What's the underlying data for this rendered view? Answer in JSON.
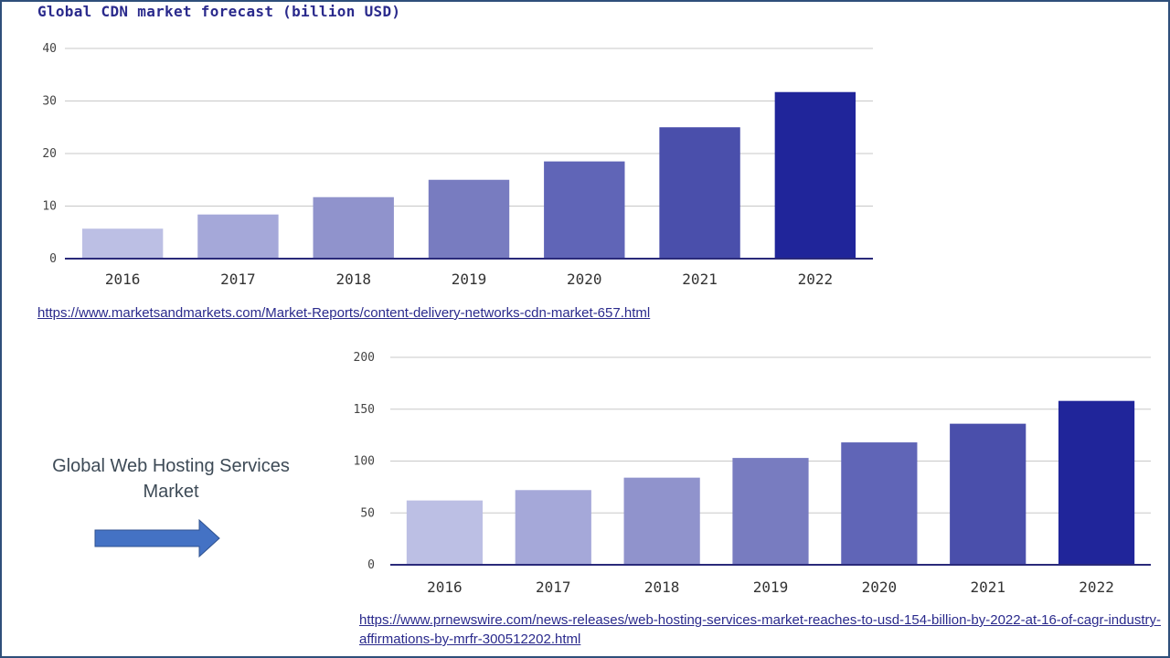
{
  "chart_data": [
    {
      "type": "bar",
      "title": "Global CDN market forecast (billion USD)",
      "categories": [
        "2016",
        "2017",
        "2018",
        "2019",
        "2020",
        "2021",
        "2022"
      ],
      "values": [
        5.7,
        8.4,
        11.7,
        15.0,
        18.5,
        25.0,
        31.7
      ],
      "ylim": [
        0,
        40
      ],
      "yticks": [
        "0",
        "10",
        "20",
        "30",
        "40"
      ],
      "grid": true,
      "colors": [
        "#bcbfe4",
        "#a5a8d9",
        "#9093cc",
        "#787cc0",
        "#6065b7",
        "#4a4fab",
        "#20259a"
      ],
      "source": "https://www.marketsandmarkets.com/Market-Reports/content-delivery-networks-cdn-market-657.html"
    },
    {
      "type": "bar",
      "categories": [
        "2016",
        "2017",
        "2018",
        "2019",
        "2020",
        "2021",
        "2022"
      ],
      "values": [
        62,
        72,
        84,
        103,
        118,
        136,
        158
      ],
      "ylim": [
        0,
        200
      ],
      "yticks": [
        "0",
        "50",
        "100",
        "150",
        "200"
      ],
      "grid": true,
      "colors": [
        "#bcbfe4",
        "#a5a8d9",
        "#9093cc",
        "#787cc0",
        "#6065b7",
        "#4a4fab",
        "#20259a"
      ],
      "source": "https://www.prnewswire.com/news-releases/web-hosting-services-market-reaches-to-usd-154-billion-by-2022-at-16-of-cagr-industry-affirmations-by-mrfr-300512202.html"
    }
  ],
  "side_label": "Global Web Hosting Services Market",
  "arrow_color": "#4472c4",
  "arrow_icon": "right-arrow-icon"
}
